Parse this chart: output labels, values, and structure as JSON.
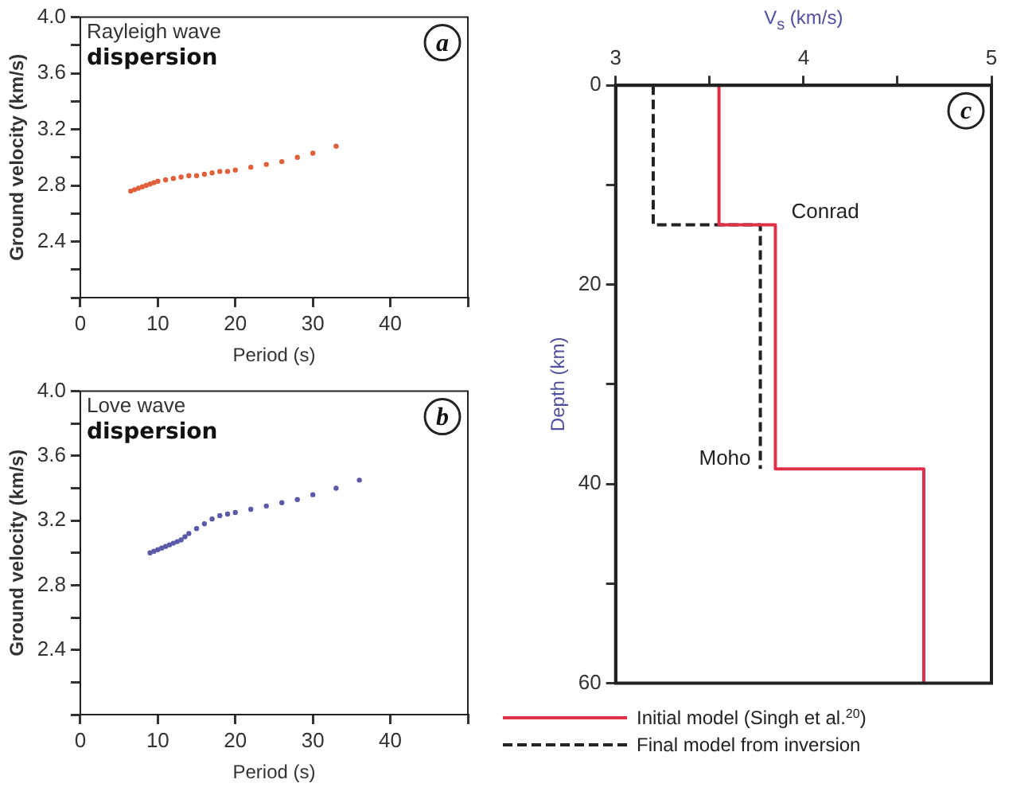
{
  "chart_data": [
    {
      "type": "scatter",
      "xlabel": "Period (s)",
      "ylabel": "Ground velocity (km/s)",
      "xlim": [
        0,
        50
      ],
      "xticks": [
        0,
        10,
        20,
        30,
        40,
        {
          "value": 50,
          "label": null
        }
      ],
      "ylim": [
        2.0,
        4.0
      ],
      "yticks": [
        {
          "value": 2.0,
          "label": null
        },
        {
          "value": 2.2,
          "label": null
        },
        2.4,
        {
          "value": 2.6,
          "label": null
        },
        2.8,
        {
          "value": 3.0,
          "label": null
        },
        3.2,
        {
          "value": 3.4,
          "label": null
        },
        3.6,
        {
          "value": 3.8,
          "label": null
        },
        {
          "value": 4,
          "label": "4.0"
        }
      ],
      "grid": false,
      "marker": "circle",
      "annotations": [
        "Rayleigh wave dispersion",
        "a"
      ],
      "series": [
        {
          "color": "#e0603a",
          "x": [
            6.5,
            7,
            7.5,
            8,
            8.5,
            9,
            9.5,
            10,
            11,
            12,
            13,
            14,
            15,
            16,
            17,
            18,
            19,
            20,
            22,
            24,
            26,
            28,
            30,
            33
          ],
          "values": [
            2.76,
            2.77,
            2.78,
            2.79,
            2.8,
            2.81,
            2.82,
            2.83,
            2.84,
            2.85,
            2.86,
            2.87,
            2.87,
            2.88,
            2.89,
            2.9,
            2.9,
            2.91,
            2.93,
            2.95,
            2.97,
            3.0,
            3.03,
            3.08
          ]
        }
      ]
    },
    {
      "type": "scatter",
      "xlabel": "Period (s)",
      "ylabel": "Ground velocity (km/s)",
      "xlim": [
        0,
        50
      ],
      "xticks": [
        0,
        10,
        20,
        30,
        40,
        {
          "value": 50,
          "label": null
        }
      ],
      "ylim": [
        2.0,
        4.0
      ],
      "yticks": [
        {
          "value": 2.0,
          "label": null
        },
        {
          "value": 2.2,
          "label": null
        },
        2.4,
        {
          "value": 2.6,
          "label": null
        },
        2.8,
        {
          "value": 3.0,
          "label": null
        },
        3.2,
        {
          "value": 3.4,
          "label": null
        },
        3.6,
        {
          "value": 3.8,
          "label": null
        },
        {
          "value": 4,
          "label": "4.0"
        }
      ],
      "grid": false,
      "marker": "circle",
      "annotations": [
        "Love wave dispersion",
        "b"
      ],
      "series": [
        {
          "color": "#5a5aa8",
          "x": [
            9,
            9.5,
            10,
            10.5,
            11,
            11.5,
            12,
            12.5,
            13,
            13.5,
            14,
            15,
            16,
            17,
            18,
            19,
            20,
            22,
            24,
            26,
            28,
            30,
            33,
            36
          ],
          "values": [
            3.0,
            3.01,
            3.02,
            3.03,
            3.04,
            3.05,
            3.06,
            3.07,
            3.08,
            3.1,
            3.12,
            3.15,
            3.18,
            3.21,
            3.23,
            3.24,
            3.25,
            3.27,
            3.29,
            3.31,
            3.33,
            3.36,
            3.4,
            3.45
          ]
        }
      ]
    },
    {
      "type": "line",
      "xlabel": "V$_{s}$ (km/s)",
      "ylabel": "Depth (km)",
      "xlim": [
        3,
        5
      ],
      "xticks": [
        3,
        {
          "value": 3.5,
          "label": null
        },
        4,
        {
          "value": 4.5,
          "label": null
        },
        5
      ],
      "ylim": [
        60,
        0
      ],
      "yticks": [
        0,
        {
          "value": 10,
          "label": null
        },
        20,
        {
          "value": 30,
          "label": null
        },
        40,
        {
          "value": 50,
          "label": null
        },
        60
      ],
      "grid": false,
      "marker": "none",
      "legend": "bottom",
      "annotations": [
        "c",
        {
          "text": "Conrad",
          "x": 3.85,
          "y": 14
        },
        {
          "text": "Moho",
          "x": 3.77,
          "y": 38.5
        }
      ],
      "series": [
        {
          "name": "Initial model (Singh et al.$^{20}$)",
          "color": "#e03048",
          "line_style": "solid",
          "x": [
            3.55,
            3.55,
            3.85,
            3.85,
            4.64,
            4.64
          ],
          "values": [
            0,
            14,
            14,
            38.5,
            38.5,
            60
          ]
        },
        {
          "name": "Final model from inversion",
          "color": "#222222",
          "line_style": "dashed",
          "x": [
            3.2,
            3.2,
            3.77,
            3.77
          ],
          "values": [
            0,
            14,
            14,
            38.5
          ]
        }
      ]
    }
  ]
}
